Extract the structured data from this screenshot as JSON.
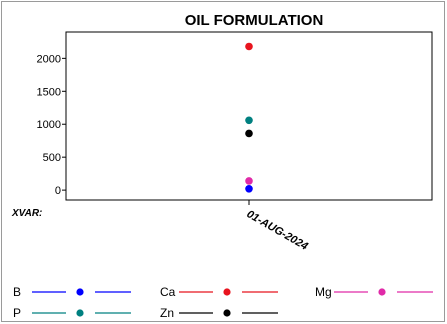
{
  "chart_data": {
    "type": "scatter",
    "title": "OIL FORMULATION",
    "x_label_prefix": "XVAR:",
    "categories": [
      "01-AUG-2024"
    ],
    "ylim": [
      -150,
      2400
    ],
    "y_ticks": [
      0,
      500,
      1000,
      1500,
      2000
    ],
    "grid": false,
    "legend_position": "bottom",
    "series": [
      {
        "name": "B",
        "color": "#0000ff",
        "values": [
          20
        ]
      },
      {
        "name": "Ca",
        "color": "#e8141e",
        "values": [
          2180
        ]
      },
      {
        "name": "Mg",
        "color": "#e02aa8",
        "values": [
          140
        ]
      },
      {
        "name": "P",
        "color": "#008080",
        "values": [
          1060
        ]
      },
      {
        "name": "Zn",
        "color": "#000000",
        "values": [
          860
        ]
      }
    ]
  }
}
